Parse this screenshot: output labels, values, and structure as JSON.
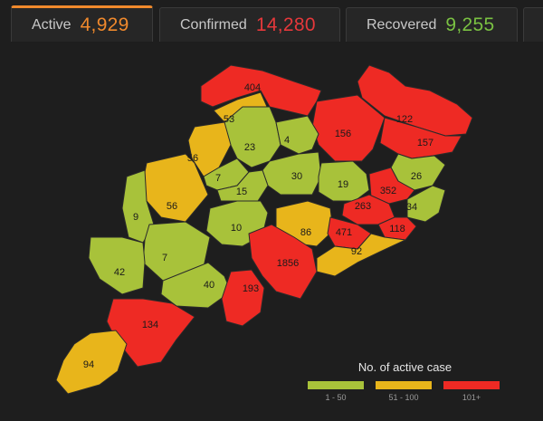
{
  "tabs": {
    "active": {
      "label": "Active",
      "value": "4,929",
      "color": "#f0892c"
    },
    "confirmed": {
      "label": "Confirmed",
      "value": "14,280",
      "color": "#e5383b"
    },
    "recovered": {
      "label": "Recovered",
      "value": "9,255",
      "color": "#7ac142"
    }
  },
  "map": {
    "districts": [
      {
        "value": "404",
        "category": "101+"
      },
      {
        "value": "53",
        "category": "51 - 100"
      },
      {
        "value": "122",
        "category": "101+"
      },
      {
        "value": "156",
        "category": "101+"
      },
      {
        "value": "157",
        "category": "101+"
      },
      {
        "value": "23",
        "category": "1 - 50"
      },
      {
        "value": "4",
        "category": "1 - 50"
      },
      {
        "value": "56",
        "category": "51 - 100"
      },
      {
        "value": "7",
        "category": "1 - 50"
      },
      {
        "value": "30",
        "category": "1 - 50"
      },
      {
        "value": "26",
        "category": "1 - 50"
      },
      {
        "value": "19",
        "category": "1 - 50"
      },
      {
        "value": "352",
        "category": "101+"
      },
      {
        "value": "15",
        "category": "1 - 50"
      },
      {
        "value": "56",
        "category": "51 - 100"
      },
      {
        "value": "9",
        "category": "1 - 50"
      },
      {
        "value": "263",
        "category": "101+"
      },
      {
        "value": "34",
        "category": "1 - 50"
      },
      {
        "value": "10",
        "category": "1 - 50"
      },
      {
        "value": "86",
        "category": "51 - 100"
      },
      {
        "value": "471",
        "category": "101+"
      },
      {
        "value": "118",
        "category": "101+"
      },
      {
        "value": "92",
        "category": "51 - 100"
      },
      {
        "value": "7",
        "category": "1 - 50"
      },
      {
        "value": "42",
        "category": "1 - 50"
      },
      {
        "value": "1856",
        "category": "101+"
      },
      {
        "value": "40",
        "category": "1 - 50"
      },
      {
        "value": "193",
        "category": "101+"
      },
      {
        "value": "134",
        "category": "101+"
      },
      {
        "value": "94",
        "category": "51 - 100"
      }
    ]
  },
  "legend": {
    "title": "No. of active case",
    "items": [
      {
        "label": "1 - 50",
        "color": "#a8c23a"
      },
      {
        "label": "51 - 100",
        "color": "#e8b51b"
      },
      {
        "label": "101+",
        "color": "#ee2a24"
      }
    ]
  }
}
